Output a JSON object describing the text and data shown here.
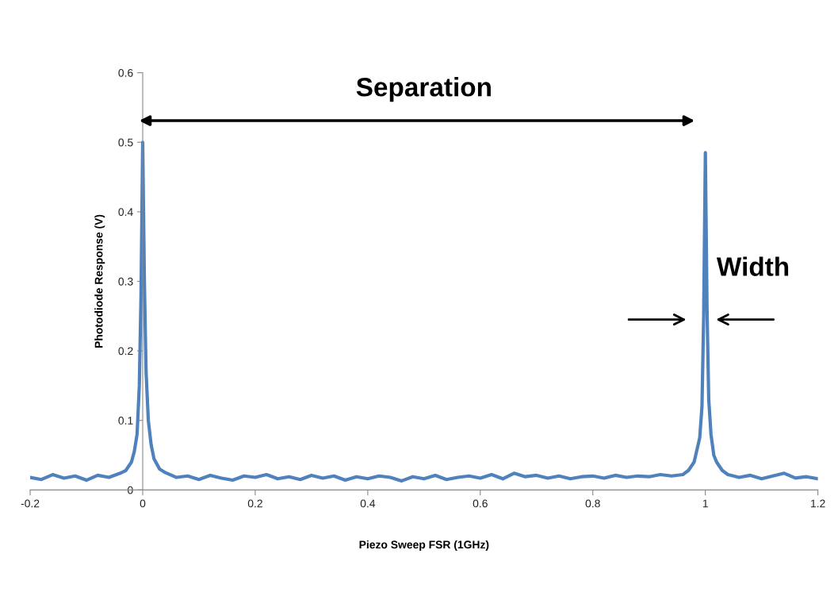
{
  "chart_data": {
    "type": "line",
    "xlabel": "Piezo Sweep FSR (1GHz)",
    "ylabel": "Photodiode Response (V)",
    "series": [
      {
        "color": "#4f81bd",
        "x": [
          -0.2,
          -0.18,
          -0.16,
          -0.14,
          -0.12,
          -0.1,
          -0.08,
          -0.06,
          -0.04,
          -0.03,
          -0.02,
          -0.015,
          -0.01,
          -0.006,
          -0.003,
          0,
          0.003,
          0.006,
          0.01,
          0.015,
          0.02,
          0.03,
          0.04,
          0.06,
          0.08,
          0.1,
          0.12,
          0.14,
          0.16,
          0.18,
          0.2,
          0.22,
          0.24,
          0.26,
          0.28,
          0.3,
          0.32,
          0.34,
          0.36,
          0.38,
          0.4,
          0.42,
          0.44,
          0.46,
          0.48,
          0.5,
          0.52,
          0.54,
          0.56,
          0.58,
          0.6,
          0.62,
          0.64,
          0.66,
          0.68,
          0.7,
          0.72,
          0.74,
          0.76,
          0.78,
          0.8,
          0.82,
          0.84,
          0.86,
          0.88,
          0.9,
          0.92,
          0.94,
          0.96,
          0.97,
          0.98,
          0.99,
          0.994,
          0.997,
          1.0,
          1.003,
          1.006,
          1.01,
          1.015,
          1.02,
          1.03,
          1.04,
          1.06,
          1.08,
          1.1,
          1.12,
          1.14,
          1.16,
          1.18,
          1.2
        ],
        "values": [
          0.018,
          0.015,
          0.022,
          0.017,
          0.02,
          0.014,
          0.021,
          0.018,
          0.024,
          0.028,
          0.04,
          0.055,
          0.08,
          0.15,
          0.28,
          0.5,
          0.3,
          0.17,
          0.1,
          0.065,
          0.045,
          0.03,
          0.025,
          0.018,
          0.02,
          0.015,
          0.021,
          0.017,
          0.014,
          0.02,
          0.018,
          0.022,
          0.016,
          0.019,
          0.015,
          0.021,
          0.017,
          0.02,
          0.014,
          0.019,
          0.016,
          0.02,
          0.018,
          0.013,
          0.019,
          0.016,
          0.021,
          0.015,
          0.018,
          0.02,
          0.017,
          0.022,
          0.016,
          0.024,
          0.019,
          0.021,
          0.017,
          0.02,
          0.016,
          0.019,
          0.02,
          0.017,
          0.021,
          0.018,
          0.02,
          0.019,
          0.022,
          0.02,
          0.022,
          0.028,
          0.04,
          0.075,
          0.12,
          0.25,
          0.485,
          0.26,
          0.13,
          0.08,
          0.05,
          0.04,
          0.028,
          0.022,
          0.018,
          0.021,
          0.016,
          0.02,
          0.024,
          0.017,
          0.019,
          0.016
        ]
      }
    ],
    "xlim": [
      -0.2,
      1.2
    ],
    "xticks": [
      {
        "value": -0.2,
        "label": "-0.2"
      },
      0,
      0.2,
      0.4,
      0.6,
      0.8,
      1,
      1.2
    ],
    "ylim": [
      0,
      0.6
    ],
    "yticks": [
      0,
      0.1,
      0.2,
      0.3,
      0.4,
      0.5,
      0.6
    ],
    "grid": false,
    "annotations": [
      "Separation",
      {
        "text": "Width",
        "x": 1,
        "y": 0.245
      }
    ]
  }
}
